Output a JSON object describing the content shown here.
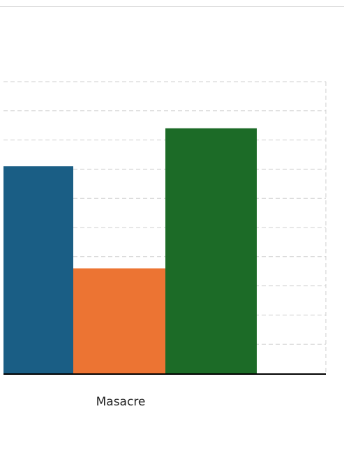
{
  "chart_data": {
    "type": "bar",
    "categories": [
      "Masacre"
    ],
    "series": [
      {
        "values": [
          71
        ],
        "color": "#1a5e85"
      },
      {
        "values": [
          36
        ],
        "color": "#ec7433"
      },
      {
        "values": [
          84
        ],
        "color": "#1c6b27"
      }
    ],
    "ylim": [
      0,
      100
    ],
    "grid": true,
    "legend": "none",
    "title": "",
    "xlabel": "",
    "ylabel": ""
  }
}
